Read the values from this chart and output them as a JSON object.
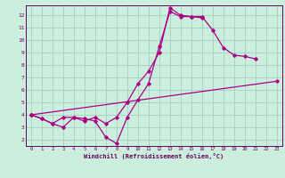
{
  "xlabel": "Windchill (Refroidissement éolien,°C)",
  "bg_color": "#cceedd",
  "grid_color": "#99ccbb",
  "line_color": "#aa0088",
  "xlim": [
    -0.5,
    23.5
  ],
  "ylim": [
    1.5,
    12.8
  ],
  "xticks": [
    0,
    1,
    2,
    3,
    4,
    5,
    6,
    7,
    8,
    9,
    10,
    11,
    12,
    13,
    14,
    15,
    16,
    17,
    18,
    19,
    20,
    21,
    22,
    23
  ],
  "yticks": [
    2,
    3,
    4,
    5,
    6,
    7,
    8,
    9,
    10,
    11,
    12
  ],
  "line1_x": [
    0,
    1,
    2,
    3,
    4,
    5,
    6,
    7,
    8,
    9,
    10,
    11,
    12,
    13,
    14,
    15,
    16,
    17,
    18,
    19,
    20,
    21
  ],
  "line1_y": [
    4.0,
    3.7,
    3.3,
    3.0,
    3.8,
    3.7,
    3.5,
    2.2,
    1.7,
    3.8,
    5.2,
    6.5,
    9.5,
    12.3,
    11.9,
    11.9,
    11.9,
    10.8,
    9.4,
    8.8,
    8.7,
    8.5
  ],
  "line2_x": [
    0,
    1,
    2,
    3,
    4,
    5,
    6,
    7,
    8,
    9,
    10,
    11,
    12,
    13,
    14,
    15,
    16
  ],
  "line2_y": [
    4.0,
    3.7,
    3.3,
    3.8,
    3.8,
    3.5,
    3.8,
    3.3,
    3.8,
    5.0,
    6.5,
    7.5,
    9.0,
    12.6,
    12.0,
    11.9,
    11.8
  ],
  "line3_x": [
    0,
    23
  ],
  "line3_y": [
    4.0,
    6.7
  ]
}
